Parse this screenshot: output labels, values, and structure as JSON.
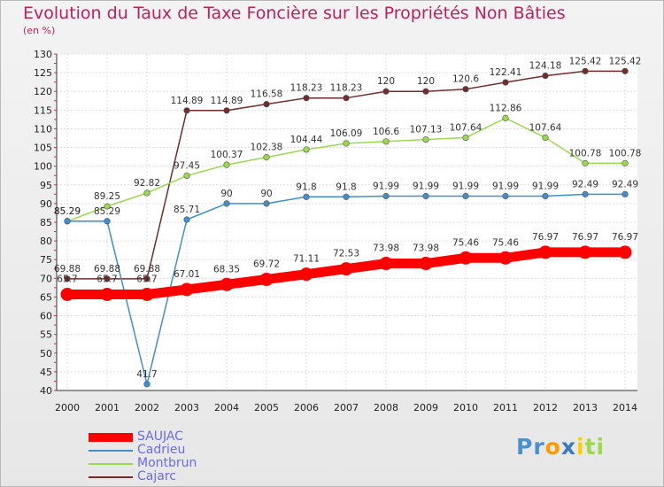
{
  "chart_data": {
    "type": "line",
    "title": "Evolution du Taux de Taxe Foncière sur les Propriétés Non Bâties",
    "ylabel": "(en %)",
    "xlabel": "",
    "ylim": [
      40,
      130
    ],
    "yticks": [
      40,
      45,
      50,
      55,
      60,
      65,
      70,
      75,
      80,
      85,
      90,
      95,
      100,
      105,
      110,
      115,
      120,
      125,
      130
    ],
    "grid": true,
    "x": [
      "2000",
      "2001",
      "2002",
      "2003",
      "2004",
      "2005",
      "2006",
      "2007",
      "2008",
      "2009",
      "2010",
      "2011",
      "2012",
      "2013",
      "2014"
    ],
    "series": [
      {
        "name": "Cajarc",
        "color": "#722c2c",
        "values": [
          69.88,
          69.88,
          69.88,
          114.89,
          114.89,
          116.58,
          118.23,
          118.23,
          120,
          120,
          120.6,
          122.41,
          124.18,
          125.42,
          125.42
        ],
        "labels": [
          "69.88",
          "69.88",
          "69.88",
          "114.89",
          "114.89",
          "116.58",
          "118.23",
          "118.23",
          "120",
          "120",
          "120.6",
          "122.41",
          "124.18",
          "125.42",
          "125.42"
        ]
      },
      {
        "name": "Montbrun",
        "color": "#9ad94e",
        "values": [
          85.29,
          89.25,
          92.82,
          97.45,
          100.37,
          102.38,
          104.44,
          106.09,
          106.6,
          107.13,
          107.64,
          112.86,
          107.64,
          100.78,
          100.78
        ],
        "labels": [
          "85.29",
          "89.25",
          "92.82",
          "97.45",
          "100.37",
          "102.38",
          "104.44",
          "106.09",
          "106.6",
          "107.13",
          "107.64",
          "112.86",
          "107.64",
          "100.78",
          "100.78"
        ]
      },
      {
        "name": "Cadrieu",
        "color": "#3f8fd0",
        "values": [
          85.29,
          85.29,
          41.7,
          85.71,
          90,
          90,
          91.8,
          91.8,
          91.99,
          91.99,
          91.99,
          91.99,
          91.99,
          92.49,
          92.49
        ],
        "labels": [
          "85.29",
          "85.29",
          "41.7",
          "85.71",
          "90",
          "90",
          "91.8",
          "91.8",
          "91.99",
          "91.99",
          "91.99",
          "91.99",
          "91.99",
          "92.49",
          "92.49"
        ]
      },
      {
        "name": "SAUJAC",
        "color": "#ff0000",
        "values": [
          65.7,
          65.7,
          65.7,
          67.01,
          68.35,
          69.72,
          71.11,
          72.53,
          73.98,
          73.98,
          75.46,
          75.46,
          76.97,
          76.97,
          76.97
        ],
        "labels": [
          "65.7",
          "65.7",
          "65.7",
          "67.01",
          "68.35",
          "69.72",
          "71.11",
          "72.53",
          "73.98",
          "73.98",
          "75.46",
          "75.46",
          "76.97",
          "76.97",
          "76.97"
        ]
      }
    ],
    "legend": {
      "placement": "bottom-left",
      "entries": [
        "SAUJAC",
        "Cadrieu",
        "Montbrun",
        "Cajarc"
      ]
    }
  },
  "logo": {
    "text_parts": [
      "Pr",
      "o",
      "x",
      "i",
      "ti"
    ],
    "colors": [
      "#4a90d0",
      "#ff9900",
      "#3a7ac0",
      "#ffcc00",
      "#9ad94e"
    ]
  }
}
